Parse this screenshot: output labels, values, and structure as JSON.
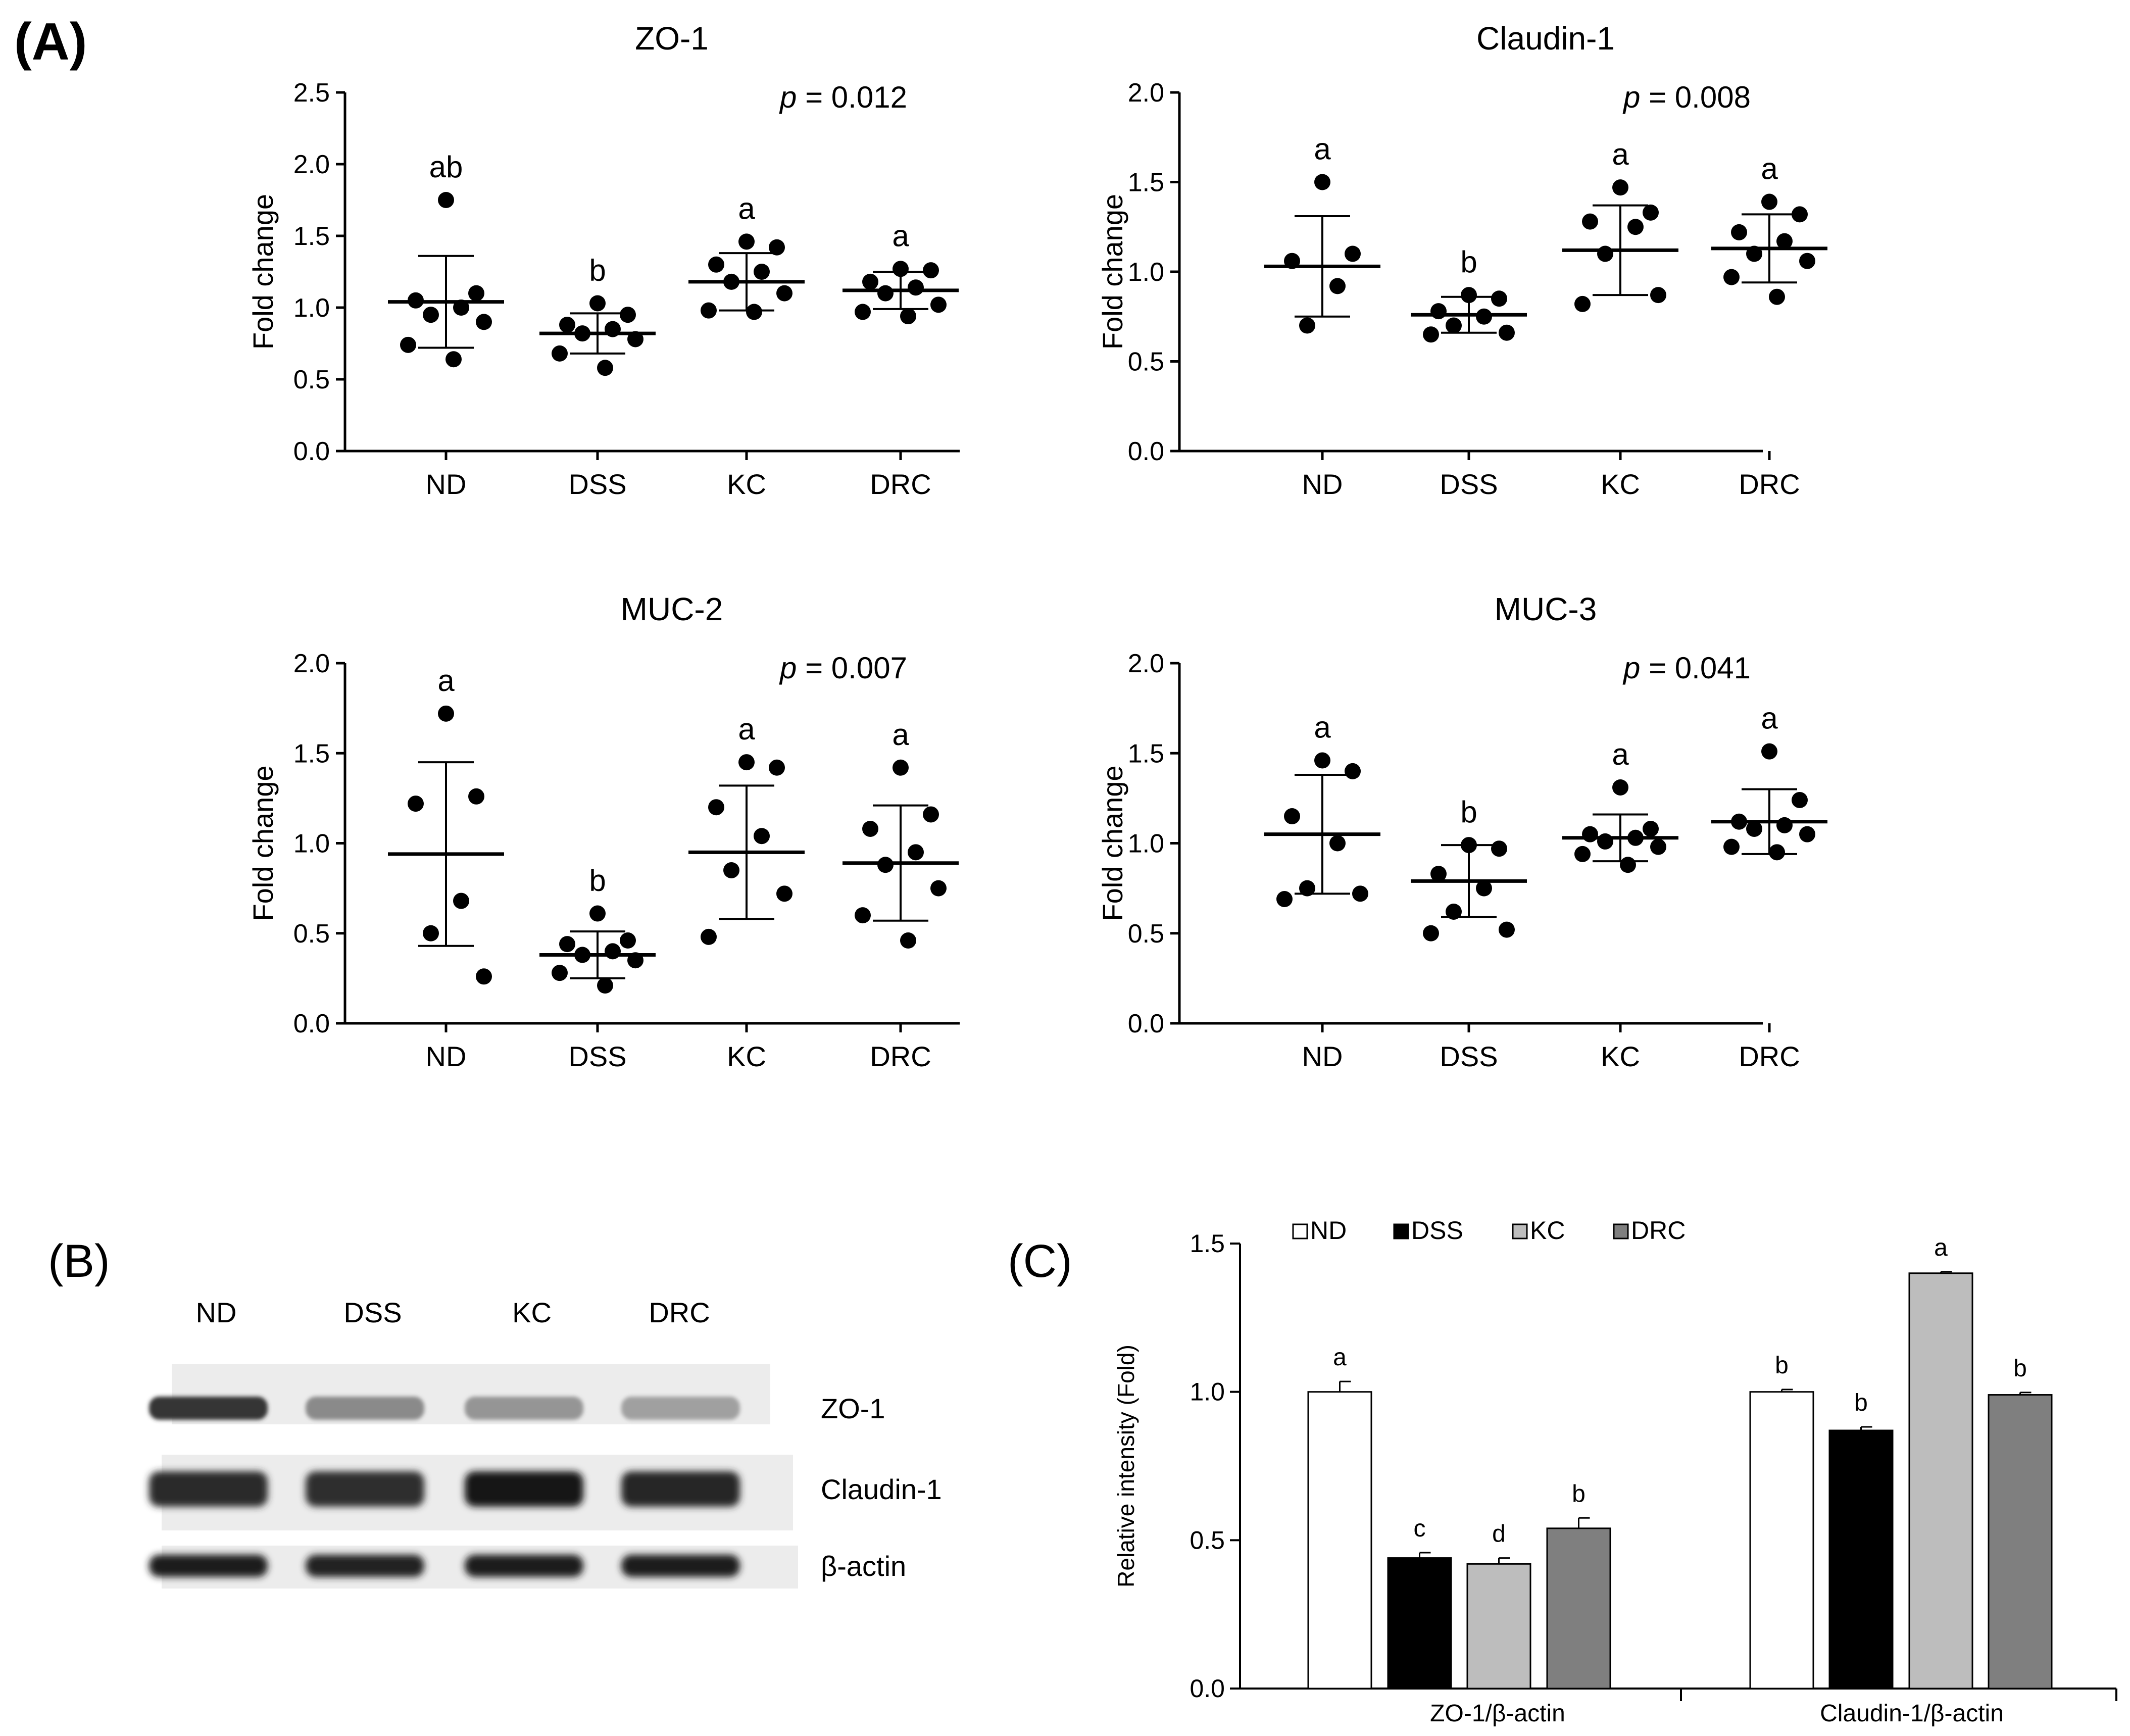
{
  "panel_labels": {
    "a": "(A)",
    "b": "(B)",
    "c": "(C)"
  },
  "chart_data": [
    {
      "type": "scatter",
      "title": "ZO-1",
      "ylabel": "Fold change",
      "ylim": [
        0,
        2.5
      ],
      "yticks": [
        "0.0",
        "0.5",
        "1.0",
        "1.5",
        "2.0",
        "2.5"
      ],
      "categories": [
        "ND",
        "DSS",
        "KC",
        "DRC"
      ],
      "p_prefix": "p",
      "p_text": " = 0.012",
      "groups": [
        {
          "name": "ND",
          "letter": "ab",
          "mean": 1.04,
          "sd": 0.32,
          "points": [
            1.75,
            1.1,
            1.05,
            1.0,
            0.95,
            0.9,
            0.74,
            0.64
          ]
        },
        {
          "name": "DSS",
          "letter": "b",
          "mean": 0.82,
          "sd": 0.14,
          "points": [
            1.03,
            0.95,
            0.88,
            0.85,
            0.82,
            0.78,
            0.68,
            0.58
          ]
        },
        {
          "name": "KC",
          "letter": "a",
          "mean": 1.18,
          "sd": 0.2,
          "points": [
            1.46,
            1.42,
            1.3,
            1.25,
            1.18,
            1.1,
            0.98,
            0.97
          ]
        },
        {
          "name": "DRC",
          "letter": "a",
          "mean": 1.12,
          "sd": 0.13,
          "points": [
            1.27,
            1.26,
            1.18,
            1.14,
            1.1,
            1.02,
            0.97,
            0.94
          ]
        }
      ]
    },
    {
      "type": "scatter",
      "title": "Claudin-1",
      "ylabel": "Fold change",
      "ylim": [
        0,
        2.0
      ],
      "yticks": [
        "0.0",
        "0.5",
        "1.0",
        "1.5",
        "2.0"
      ],
      "categories": [
        "ND",
        "DSS",
        "KC",
        "DRC"
      ],
      "p_prefix": "p",
      "p_text": " = 0.008",
      "groups": [
        {
          "name": "ND",
          "letter": "a",
          "mean": 1.03,
          "sd": 0.28,
          "points": [
            1.5,
            1.1,
            1.06,
            0.92,
            0.7
          ]
        },
        {
          "name": "DSS",
          "letter": "b",
          "mean": 0.76,
          "sd": 0.1,
          "points": [
            0.87,
            0.85,
            0.78,
            0.75,
            0.7,
            0.66,
            0.65
          ]
        },
        {
          "name": "KC",
          "letter": "a",
          "mean": 1.12,
          "sd": 0.25,
          "points": [
            1.47,
            1.33,
            1.28,
            1.25,
            1.1,
            0.87,
            0.82
          ]
        },
        {
          "name": "DRC",
          "letter": "a",
          "mean": 1.13,
          "sd": 0.19,
          "points": [
            1.39,
            1.32,
            1.22,
            1.17,
            1.1,
            1.06,
            0.97,
            0.86
          ]
        }
      ]
    },
    {
      "type": "scatter",
      "title": "MUC-2",
      "ylabel": "Fold change",
      "ylim": [
        0,
        2.0
      ],
      "yticks": [
        "0.0",
        "0.5",
        "1.0",
        "1.5",
        "2.0"
      ],
      "categories": [
        "ND",
        "DSS",
        "KC",
        "DRC"
      ],
      "p_prefix": "p",
      "p_text": " = 0.007",
      "groups": [
        {
          "name": "ND",
          "letter": "a",
          "mean": 0.94,
          "sd": 0.51,
          "points": [
            1.72,
            1.26,
            1.22,
            0.68,
            0.5,
            0.26
          ]
        },
        {
          "name": "DSS",
          "letter": "b",
          "mean": 0.38,
          "sd": 0.13,
          "points": [
            0.61,
            0.46,
            0.44,
            0.4,
            0.38,
            0.35,
            0.28,
            0.21
          ]
        },
        {
          "name": "KC",
          "letter": "a",
          "mean": 0.95,
          "sd": 0.37,
          "points": [
            1.45,
            1.42,
            1.2,
            1.04,
            0.85,
            0.72,
            0.48
          ]
        },
        {
          "name": "DRC",
          "letter": "a",
          "mean": 0.89,
          "sd": 0.32,
          "points": [
            1.42,
            1.16,
            1.08,
            0.95,
            0.88,
            0.75,
            0.6,
            0.46
          ]
        }
      ]
    },
    {
      "type": "scatter",
      "title": "MUC-3",
      "ylabel": "Fold change",
      "ylim": [
        0,
        2.0
      ],
      "yticks": [
        "0.0",
        "0.5",
        "1.0",
        "1.5",
        "2.0"
      ],
      "categories": [
        "ND",
        "DSS",
        "KC",
        "DRC"
      ],
      "p_prefix": "p",
      "p_text": " = 0.041",
      "groups": [
        {
          "name": "ND",
          "letter": "a",
          "mean": 1.05,
          "sd": 0.33,
          "points": [
            1.46,
            1.4,
            1.15,
            1.0,
            0.75,
            0.72,
            0.69
          ]
        },
        {
          "name": "DSS",
          "letter": "b",
          "mean": 0.79,
          "sd": 0.2,
          "points": [
            0.99,
            0.97,
            0.83,
            0.75,
            0.62,
            0.52,
            0.5
          ]
        },
        {
          "name": "KC",
          "letter": "a",
          "mean": 1.03,
          "sd": 0.13,
          "points": [
            1.31,
            1.08,
            1.05,
            1.03,
            1.01,
            0.98,
            0.94,
            0.88
          ]
        },
        {
          "name": "DRC",
          "letter": "a",
          "mean": 1.12,
          "sd": 0.18,
          "points": [
            1.51,
            1.24,
            1.12,
            1.1,
            1.08,
            1.05,
            0.98,
            0.95
          ]
        }
      ]
    },
    {
      "type": "bar",
      "ylabel": "Relative intensity (Fold)",
      "ylim": [
        0,
        1.5
      ],
      "yticks": [
        "0.0",
        "0.5",
        "1.0",
        "1.5"
      ],
      "categories": [
        "ZO-1/β-actin",
        "Claudin-1/β-actin"
      ],
      "legend_position": "top",
      "series": [
        {
          "name": "ND",
          "color": "#ffffff",
          "values": [
            1.0,
            1.0
          ],
          "errors": [
            0.035,
            0.008
          ],
          "letters": [
            "a",
            "b"
          ]
        },
        {
          "name": "DSS",
          "color": "#000000",
          "values": [
            0.44,
            0.87
          ],
          "errors": [
            0.018,
            0.012
          ],
          "letters": [
            "c",
            "b"
          ]
        },
        {
          "name": "KC",
          "color": "#bdbdbd",
          "values": [
            0.42,
            1.4
          ],
          "errors": [
            0.02,
            0.005
          ],
          "letters": [
            "d",
            "a"
          ]
        },
        {
          "name": "DRC",
          "color": "#7f7f7f",
          "values": [
            0.54,
            0.99
          ],
          "errors": [
            0.035,
            0.008
          ],
          "letters": [
            "b",
            "b"
          ]
        }
      ]
    }
  ],
  "blot": {
    "lanes": [
      "ND",
      "DSS",
      "KC",
      "DRC"
    ],
    "proteins": [
      "ZO-1",
      "Claudin-1",
      "β-actin"
    ],
    "band_intensity": [
      [
        0.85,
        0.45,
        0.4,
        0.35
      ],
      [
        0.9,
        0.88,
        1.0,
        0.92
      ],
      [
        0.95,
        0.93,
        0.97,
        0.95
      ]
    ]
  }
}
